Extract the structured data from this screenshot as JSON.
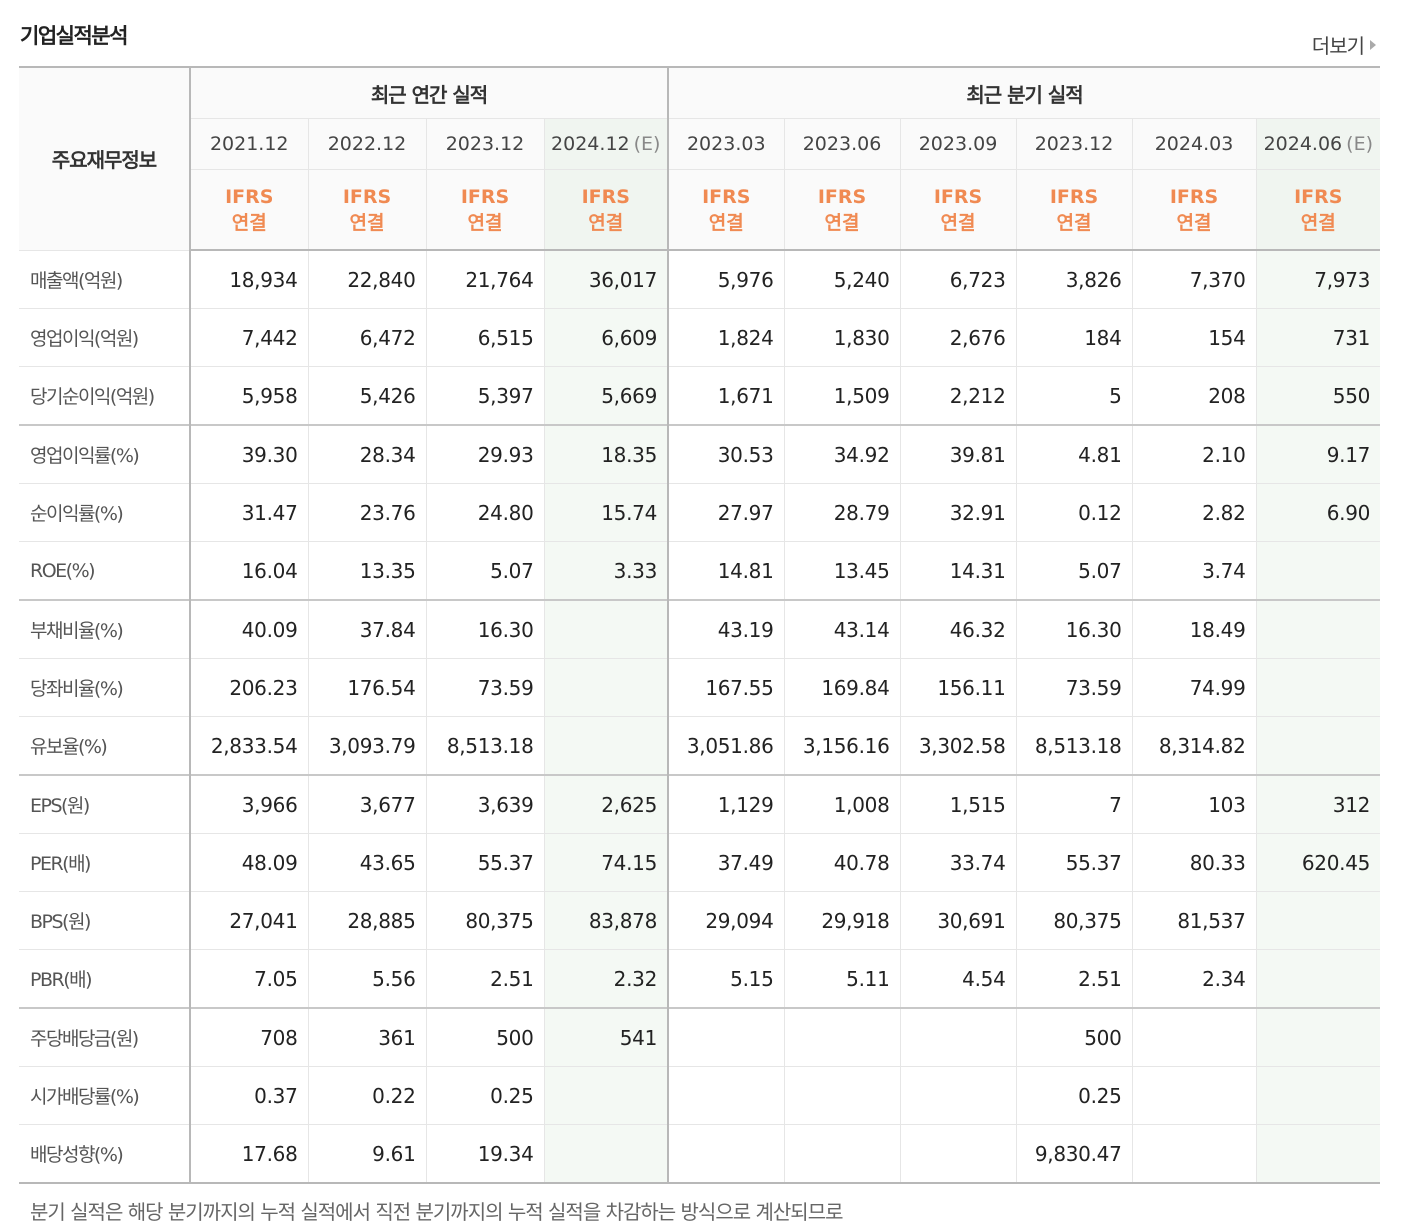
{
  "section": {
    "title": "기업실적분석",
    "more_label": "더보기"
  },
  "table": {
    "label_header": "주요재무정보",
    "annual_header": "최근 연간 실적",
    "quarterly_header": "최근 분기 실적",
    "periods": [
      {
        "date": "2021.12",
        "est": "",
        "estimated": false,
        "basis_top": "IFRS",
        "basis_bottom": "연결"
      },
      {
        "date": "2022.12",
        "est": "",
        "estimated": false,
        "basis_top": "IFRS",
        "basis_bottom": "연결"
      },
      {
        "date": "2023.12",
        "est": "",
        "estimated": false,
        "basis_top": "IFRS",
        "basis_bottom": "연결"
      },
      {
        "date": "2024.12",
        "est": "(E)",
        "estimated": true,
        "basis_top": "IFRS",
        "basis_bottom": "연결"
      },
      {
        "date": "2023.03",
        "est": "",
        "estimated": false,
        "basis_top": "IFRS",
        "basis_bottom": "연결"
      },
      {
        "date": "2023.06",
        "est": "",
        "estimated": false,
        "basis_top": "IFRS",
        "basis_bottom": "연결"
      },
      {
        "date": "2023.09",
        "est": "",
        "estimated": false,
        "basis_top": "IFRS",
        "basis_bottom": "연결"
      },
      {
        "date": "2023.12",
        "est": "",
        "estimated": false,
        "basis_top": "IFRS",
        "basis_bottom": "연결"
      },
      {
        "date": "2024.03",
        "est": "",
        "estimated": false,
        "basis_top": "IFRS",
        "basis_bottom": "연결"
      },
      {
        "date": "2024.06",
        "est": "(E)",
        "estimated": true,
        "basis_top": "IFRS",
        "basis_bottom": "연결"
      }
    ],
    "rows": [
      {
        "label": "매출액(억원)",
        "values": [
          "18,934",
          "22,840",
          "21,764",
          "36,017",
          "5,976",
          "5,240",
          "6,723",
          "3,826",
          "7,370",
          "7,973"
        ]
      },
      {
        "label": "영업이익(억원)",
        "values": [
          "7,442",
          "6,472",
          "6,515",
          "6,609",
          "1,824",
          "1,830",
          "2,676",
          "184",
          "154",
          "731"
        ]
      },
      {
        "label": "당기순이익(억원)",
        "values": [
          "5,958",
          "5,426",
          "5,397",
          "5,669",
          "1,671",
          "1,509",
          "2,212",
          "5",
          "208",
          "550"
        ]
      },
      {
        "label": "영업이익률(%)",
        "values": [
          "39.30",
          "28.34",
          "29.93",
          "18.35",
          "30.53",
          "34.92",
          "39.81",
          "4.81",
          "2.10",
          "9.17"
        ]
      },
      {
        "label": "순이익률(%)",
        "values": [
          "31.47",
          "23.76",
          "24.80",
          "15.74",
          "27.97",
          "28.79",
          "32.91",
          "0.12",
          "2.82",
          "6.90"
        ]
      },
      {
        "label": "ROE(%)",
        "values": [
          "16.04",
          "13.35",
          "5.07",
          "3.33",
          "14.81",
          "13.45",
          "14.31",
          "5.07",
          "3.74",
          ""
        ]
      },
      {
        "label": "부채비율(%)",
        "values": [
          "40.09",
          "37.84",
          "16.30",
          "",
          "43.19",
          "43.14",
          "46.32",
          "16.30",
          "18.49",
          ""
        ]
      },
      {
        "label": "당좌비율(%)",
        "values": [
          "206.23",
          "176.54",
          "73.59",
          "",
          "167.55",
          "169.84",
          "156.11",
          "73.59",
          "74.99",
          ""
        ]
      },
      {
        "label": "유보율(%)",
        "values": [
          "2,833.54",
          "3,093.79",
          "8,513.18",
          "",
          "3,051.86",
          "3,156.16",
          "3,302.58",
          "8,513.18",
          "8,314.82",
          ""
        ]
      },
      {
        "label": "EPS(원)",
        "values": [
          "3,966",
          "3,677",
          "3,639",
          "2,625",
          "1,129",
          "1,008",
          "1,515",
          "7",
          "103",
          "312"
        ]
      },
      {
        "label": "PER(배)",
        "values": [
          "48.09",
          "43.65",
          "55.37",
          "74.15",
          "37.49",
          "40.78",
          "33.74",
          "55.37",
          "80.33",
          "620.45"
        ]
      },
      {
        "label": "BPS(원)",
        "values": [
          "27,041",
          "28,885",
          "80,375",
          "83,878",
          "29,094",
          "29,918",
          "30,691",
          "80,375",
          "81,537",
          ""
        ]
      },
      {
        "label": "PBR(배)",
        "values": [
          "7.05",
          "5.56",
          "2.51",
          "2.32",
          "5.15",
          "5.11",
          "4.54",
          "2.51",
          "2.34",
          ""
        ]
      },
      {
        "label": "주당배당금(원)",
        "values": [
          "708",
          "361",
          "500",
          "541",
          "",
          "",
          "",
          "500",
          "",
          ""
        ]
      },
      {
        "label": "시가배당률(%)",
        "values": [
          "0.37",
          "0.22",
          "0.25",
          "",
          "",
          "",
          "",
          "0.25",
          "",
          ""
        ]
      },
      {
        "label": "배당성향(%)",
        "values": [
          "17.68",
          "9.61",
          "19.34",
          "",
          "",
          "",
          "",
          "9,830.47",
          "",
          ""
        ]
      }
    ]
  },
  "footnote": "분기 실적은 해당 분기까지의 누적 실적에서 직전 분기까지의 누적 실적을 차감하는 방식으로 계산되므로"
}
